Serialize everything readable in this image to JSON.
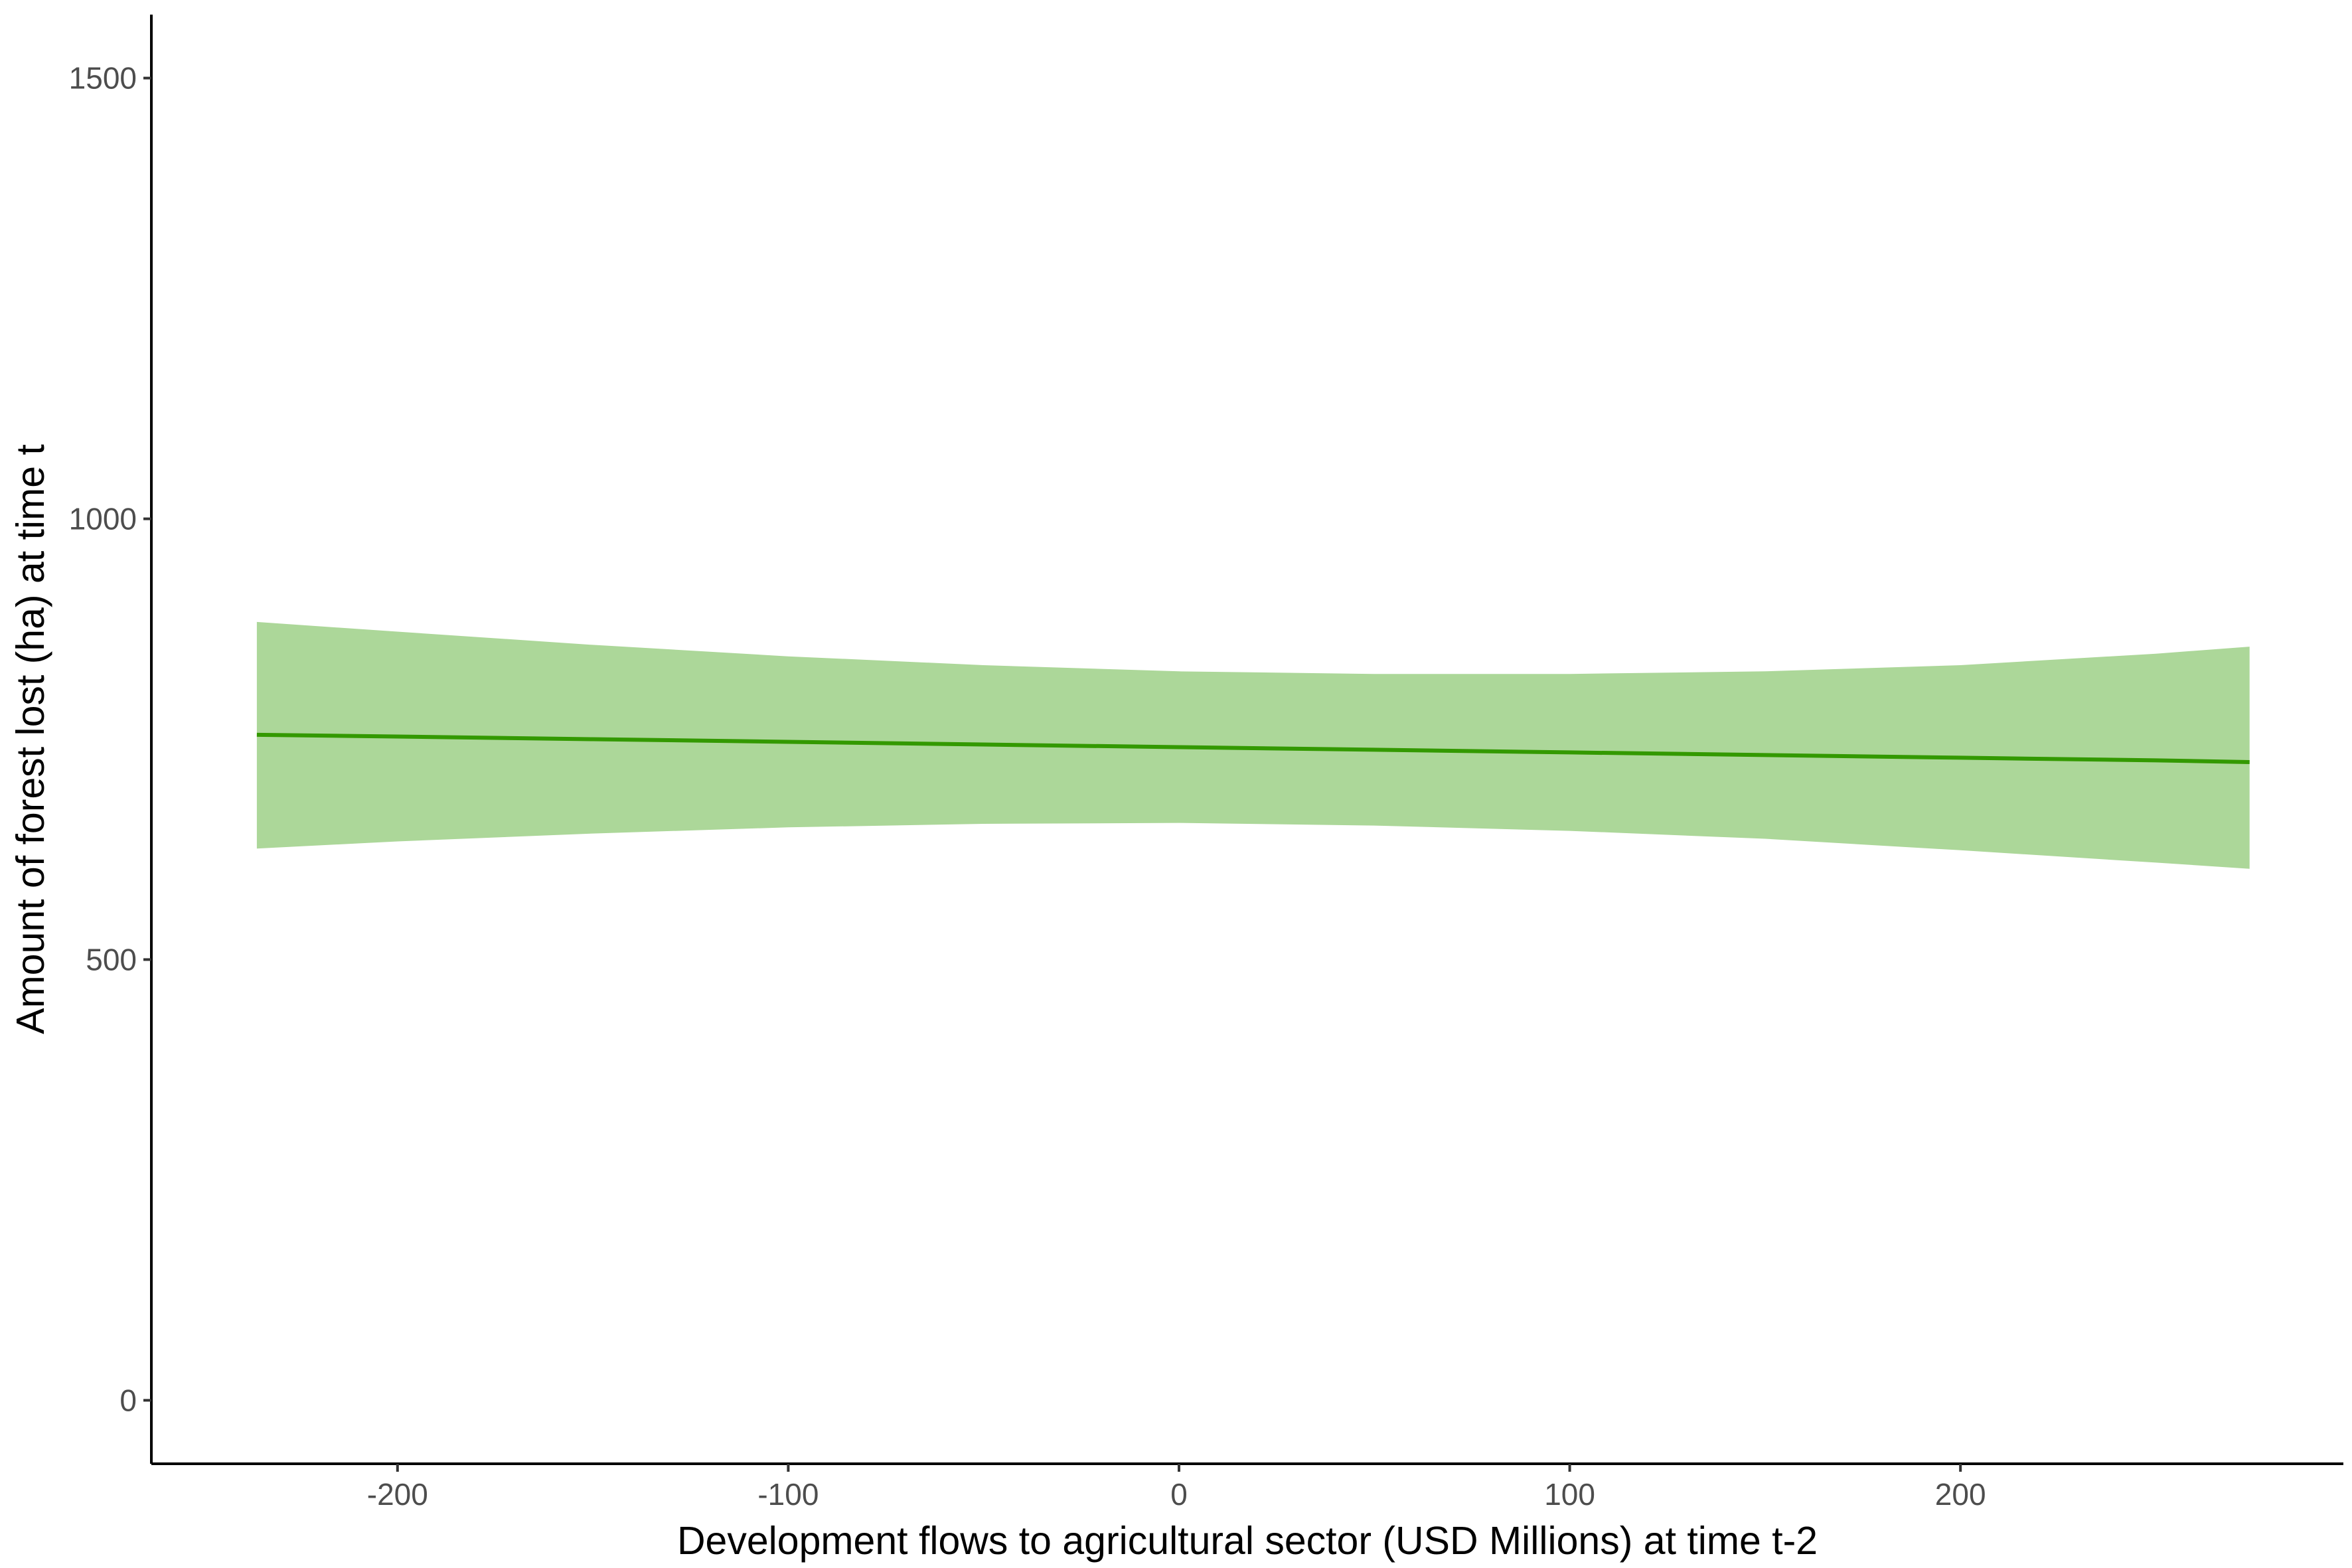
{
  "chart_data": {
    "type": "line",
    "title": "",
    "xlabel": "Development flows to agricultural sector (USD Millions) at time t-2",
    "ylabel": "Amount of forest lost (ha) at time t",
    "xlim": [
      -263,
      298
    ],
    "ylim": [
      -72,
      1572
    ],
    "x_ticks": [
      -200,
      -100,
      0,
      100,
      200
    ],
    "x_tick_labels": [
      "-200",
      "-100",
      "0",
      "100",
      "200"
    ],
    "y_ticks": [
      0,
      500,
      1000,
      1500
    ],
    "y_tick_labels": [
      "0",
      "500",
      "1000",
      "1500"
    ],
    "grid": false,
    "legend": "none",
    "series": [
      {
        "color": "#339900",
        "ribbon_color": "#acd799",
        "x": [
          -236,
          -200,
          -150,
          -100,
          -50,
          0,
          50,
          100,
          150,
          200,
          250,
          274
        ],
        "y": [
          755,
          753,
          750,
          747,
          744,
          741,
          738,
          735,
          732,
          729,
          726,
          724
        ],
        "lower": [
          626,
          634,
          643,
          650,
          654,
          655,
          652,
          646,
          637,
          624,
          610,
          603
        ],
        "upper": [
          883,
          872,
          857,
          844,
          834,
          827,
          824,
          824,
          827,
          834,
          847,
          855
        ]
      }
    ]
  }
}
